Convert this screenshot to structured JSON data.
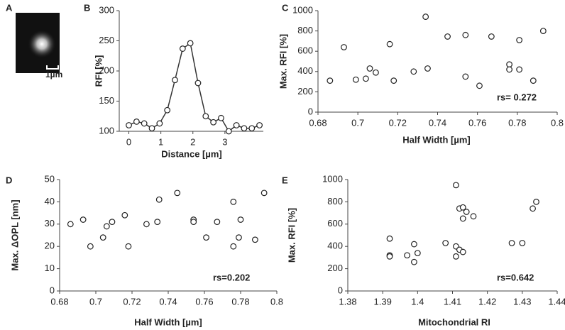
{
  "chart_data": [
    {
      "type": "image",
      "label": "A",
      "scale_bar": "1µm"
    },
    {
      "type": "line",
      "label": "B",
      "xlabel": "Distance [µm]",
      "ylabel": "RFI [%]",
      "x": [
        0,
        0.24,
        0.48,
        0.72,
        0.96,
        1.2,
        1.44,
        1.68,
        1.92,
        2.16,
        2.4,
        2.64,
        2.88,
        3.12,
        3.36,
        3.6,
        3.84,
        4.08
      ],
      "values": [
        110,
        116,
        113,
        105,
        113,
        135,
        185,
        237,
        246,
        180,
        125,
        115,
        122,
        100,
        110,
        105,
        105,
        110
      ],
      "xlim": [
        -0.3,
        4.2
      ],
      "xticks": [
        0,
        1,
        2,
        3
      ],
      "ylim": [
        100,
        300
      ],
      "yticks": [
        100,
        150,
        200,
        250,
        300
      ]
    },
    {
      "type": "scatter",
      "label": "C",
      "xlabel": "Half Width [µm]",
      "ylabel": "Max. RFI [%]",
      "annotation": "rs= 0.272",
      "x": [
        0.686,
        0.693,
        0.699,
        0.704,
        0.706,
        0.709,
        0.716,
        0.718,
        0.728,
        0.734,
        0.735,
        0.745,
        0.754,
        0.754,
        0.761,
        0.767,
        0.776,
        0.776,
        0.781,
        0.781,
        0.788,
        0.793
      ],
      "values": [
        310,
        640,
        320,
        330,
        430,
        390,
        670,
        310,
        400,
        940,
        430,
        745,
        760,
        350,
        260,
        745,
        470,
        420,
        420,
        710,
        310,
        800
      ],
      "xlim": [
        0.68,
        0.8
      ],
      "xticks": [
        0.68,
        0.7,
        0.72,
        0.74,
        0.76,
        0.78,
        0.8
      ],
      "ylim": [
        0,
        1000
      ],
      "yticks": [
        0,
        200,
        400,
        600,
        800,
        1000
      ]
    },
    {
      "type": "scatter",
      "label": "D",
      "xlabel": "Half Width [µm]",
      "ylabel": "Max. ΔOPL [nm]",
      "annotation": "rs=0.202",
      "x": [
        0.686,
        0.693,
        0.697,
        0.704,
        0.706,
        0.709,
        0.716,
        0.718,
        0.728,
        0.734,
        0.735,
        0.745,
        0.754,
        0.754,
        0.761,
        0.767,
        0.776,
        0.776,
        0.779,
        0.78,
        0.788,
        0.793
      ],
      "values": [
        30,
        32,
        20,
        24,
        29,
        31,
        34,
        20,
        30,
        31,
        41,
        44,
        32,
        31,
        24,
        31,
        40,
        20,
        24,
        32,
        23,
        44
      ],
      "xlim": [
        0.68,
        0.8
      ],
      "xticks": [
        0.68,
        0.7,
        0.72,
        0.74,
        0.76,
        0.78,
        0.8
      ],
      "ylim": [
        0,
        50
      ],
      "yticks": [
        0,
        10,
        20,
        30,
        40,
        50
      ]
    },
    {
      "type": "scatter",
      "label": "E",
      "xlabel": "Mitochondrial RI",
      "ylabel": "Max. RFI [%]",
      "annotation": "rs=0.642",
      "x": [
        1.392,
        1.392,
        1.392,
        1.397,
        1.399,
        1.399,
        1.4,
        1.408,
        1.411,
        1.411,
        1.411,
        1.412,
        1.412,
        1.413,
        1.413,
        1.414,
        1.413,
        1.416,
        1.427,
        1.43,
        1.433,
        1.434
      ],
      "values": [
        470,
        320,
        310,
        320,
        420,
        260,
        340,
        430,
        400,
        310,
        950,
        370,
        740,
        750,
        650,
        710,
        350,
        670,
        430,
        430,
        740,
        800
      ],
      "xlim": [
        1.38,
        1.44
      ],
      "xticks": [
        1.38,
        1.39,
        1.4,
        1.41,
        1.42,
        1.43,
        1.44
      ],
      "ylim": [
        0,
        1000
      ],
      "yticks": [
        0,
        200,
        400,
        600,
        800,
        1000
      ]
    }
  ]
}
